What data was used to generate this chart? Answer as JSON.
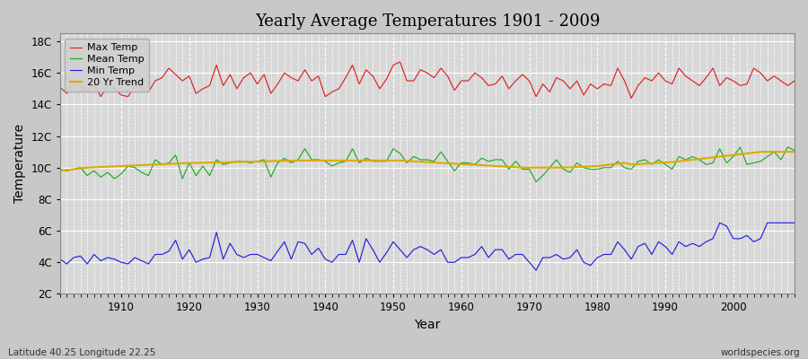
{
  "title": "Yearly Average Temperatures 1901 - 2009",
  "xlabel": "Year",
  "ylabel": "Temperature",
  "lat_lon_label": "Latitude 40.25 Longitude 22.25",
  "watermark": "worldspecies.org",
  "start_year": 1901,
  "end_year": 2009,
  "yticks": [
    2,
    4,
    6,
    8,
    10,
    12,
    14,
    16,
    18
  ],
  "ytick_labels": [
    "2C",
    "4C",
    "6C",
    "8C",
    "10C",
    "12C",
    "14C",
    "16C",
    "18C"
  ],
  "xticks": [
    1910,
    1920,
    1930,
    1940,
    1950,
    1960,
    1970,
    1980,
    1990,
    2000
  ],
  "ylim": [
    2,
    18.5
  ],
  "xlim": [
    1901,
    2009
  ],
  "fig_bg": "#c8c8c8",
  "plot_bg": "#d8d8d8",
  "grid_color": "#ffffff",
  "colors": {
    "max_temp": "#dd2222",
    "mean_temp": "#22aa22",
    "min_temp": "#2222dd",
    "trend": "#ddaa00"
  },
  "legend": {
    "max_temp": "Max Temp",
    "mean_temp": "Mean Temp",
    "min_temp": "Min Temp",
    "trend": "20 Yr Trend"
  },
  "max_temp": [
    15.1,
    14.7,
    15.5,
    15.2,
    14.8,
    15.3,
    14.5,
    15.2,
    15.0,
    14.6,
    14.5,
    15.2,
    15.1,
    14.8,
    15.5,
    15.7,
    16.3,
    15.9,
    15.5,
    15.8,
    14.7,
    15.0,
    15.2,
    16.5,
    15.2,
    15.9,
    15.0,
    15.7,
    16.0,
    15.3,
    15.9,
    14.7,
    15.3,
    16.0,
    15.7,
    15.5,
    16.2,
    15.5,
    15.8,
    14.5,
    14.8,
    15.0,
    15.7,
    16.5,
    15.3,
    16.2,
    15.8,
    15.0,
    15.6,
    16.5,
    16.7,
    15.5,
    15.5,
    16.2,
    16.0,
    15.7,
    16.3,
    15.8,
    14.9,
    15.5,
    15.5,
    16.0,
    15.7,
    15.2,
    15.3,
    15.8,
    15.0,
    15.5,
    15.9,
    15.5,
    14.5,
    15.3,
    14.8,
    15.7,
    15.5,
    15.0,
    15.5,
    14.6,
    15.3,
    15.0,
    15.3,
    15.2,
    16.3,
    15.5,
    14.4,
    15.2,
    15.7,
    15.5,
    16.0,
    15.5,
    15.3,
    16.3,
    15.8,
    15.5,
    15.2,
    15.7,
    16.3,
    15.2,
    15.7,
    15.5,
    15.2,
    15.3,
    16.3,
    16.0,
    15.5,
    15.8,
    15.5,
    15.2,
    15.5
  ],
  "mean_temp": [
    9.9,
    9.8,
    9.9,
    10.0,
    9.5,
    9.8,
    9.4,
    9.7,
    9.3,
    9.6,
    10.1,
    10.0,
    9.7,
    9.5,
    10.5,
    10.2,
    10.3,
    10.8,
    9.3,
    10.3,
    9.5,
    10.1,
    9.5,
    10.5,
    10.2,
    10.3,
    10.4,
    10.4,
    10.3,
    10.4,
    10.5,
    9.4,
    10.3,
    10.6,
    10.3,
    10.5,
    11.2,
    10.5,
    10.5,
    10.4,
    10.1,
    10.3,
    10.4,
    11.2,
    10.3,
    10.6,
    10.4,
    10.4,
    10.4,
    11.2,
    10.9,
    10.3,
    10.7,
    10.5,
    10.5,
    10.4,
    11.0,
    10.4,
    9.8,
    10.3,
    10.3,
    10.2,
    10.6,
    10.4,
    10.5,
    10.5,
    9.9,
    10.4,
    9.9,
    9.9,
    9.1,
    9.5,
    10.0,
    10.5,
    9.9,
    9.7,
    10.3,
    10.0,
    9.9,
    9.9,
    10.0,
    10.0,
    10.4,
    10.0,
    9.9,
    10.4,
    10.5,
    10.2,
    10.5,
    10.2,
    9.9,
    10.7,
    10.5,
    10.7,
    10.5,
    10.2,
    10.3,
    11.2,
    10.3,
    10.7,
    11.3,
    10.2,
    10.3,
    10.4,
    10.7,
    11.0,
    10.5,
    11.3,
    11.1
  ],
  "min_temp": [
    4.2,
    3.9,
    4.3,
    4.4,
    3.9,
    4.5,
    4.1,
    4.3,
    4.2,
    4.0,
    3.9,
    4.3,
    4.1,
    3.9,
    4.5,
    4.5,
    4.7,
    5.4,
    4.2,
    4.8,
    4.0,
    4.2,
    4.3,
    5.9,
    4.2,
    5.2,
    4.5,
    4.3,
    4.5,
    4.5,
    4.3,
    4.1,
    4.7,
    5.3,
    4.2,
    5.3,
    5.2,
    4.5,
    4.9,
    4.2,
    4.0,
    4.5,
    4.5,
    5.4,
    4.0,
    5.5,
    4.8,
    4.0,
    4.6,
    5.3,
    4.8,
    4.3,
    4.8,
    5.0,
    4.8,
    4.5,
    4.8,
    4.0,
    4.0,
    4.3,
    4.3,
    4.5,
    5.0,
    4.3,
    4.8,
    4.8,
    4.2,
    4.5,
    4.5,
    4.0,
    3.5,
    4.3,
    4.3,
    4.5,
    4.2,
    4.3,
    4.8,
    4.0,
    3.8,
    4.3,
    4.5,
    4.5,
    5.3,
    4.8,
    4.2,
    5.0,
    5.2,
    4.5,
    5.3,
    5.0,
    4.5,
    5.3,
    5.0,
    5.2,
    5.0,
    5.3,
    5.5,
    6.5,
    6.3,
    5.5,
    5.5,
    5.7,
    5.3,
    5.5,
    6.5,
    6.5,
    6.5,
    6.5,
    6.5
  ],
  "trend": [
    9.8,
    9.85,
    9.9,
    9.95,
    10.0,
    10.02,
    10.04,
    10.06,
    10.08,
    10.1,
    10.12,
    10.14,
    10.16,
    10.18,
    10.2,
    10.22,
    10.24,
    10.26,
    10.28,
    10.3,
    10.3,
    10.31,
    10.32,
    10.33,
    10.34,
    10.35,
    10.36,
    10.37,
    10.38,
    10.39,
    10.4,
    10.41,
    10.42,
    10.43,
    10.44,
    10.45,
    10.45,
    10.45,
    10.45,
    10.45,
    10.45,
    10.45,
    10.45,
    10.45,
    10.45,
    10.45,
    10.45,
    10.45,
    10.45,
    10.45,
    10.45,
    10.42,
    10.4,
    10.38,
    10.35,
    10.32,
    10.3,
    10.28,
    10.25,
    10.22,
    10.2,
    10.18,
    10.15,
    10.13,
    10.1,
    10.08,
    10.05,
    10.03,
    10.0,
    10.0,
    10.0,
    10.0,
    10.0,
    10.0,
    10.0,
    10.02,
    10.04,
    10.06,
    10.08,
    10.1,
    10.15,
    10.2,
    10.25,
    10.3,
    10.2,
    10.22,
    10.25,
    10.27,
    10.3,
    10.33,
    10.35,
    10.4,
    10.45,
    10.5,
    10.55,
    10.6,
    10.65,
    10.7,
    10.75,
    10.8,
    10.85,
    10.9,
    10.95,
    11.0,
    11.0,
    11.0,
    11.0,
    11.0,
    11.0
  ]
}
